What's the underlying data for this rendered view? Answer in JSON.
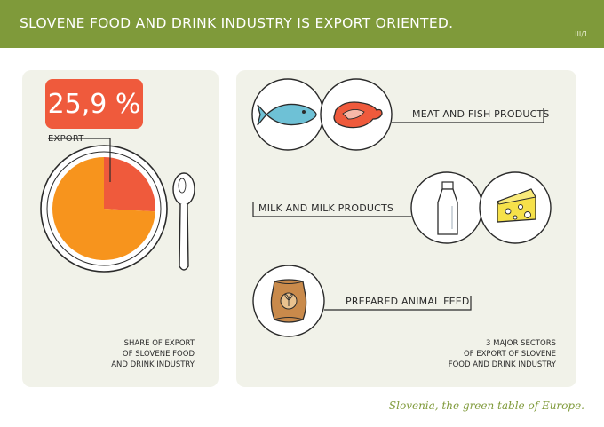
{
  "header": {
    "title": "SLOVENE FOOD AND DRINK INDUSTRY IS EXPORT ORIENTED.",
    "page_num": "III/1"
  },
  "left_panel": {
    "export_value": "25,9 %",
    "export_label": "EXPORT",
    "caption": [
      "SHARE OF EXPORT",
      "OF SLOVENE FOOD",
      "AND DRINK INDUSTRY"
    ]
  },
  "right_panel": {
    "sectors": [
      {
        "label": "MEAT AND FISH PRODUCTS",
        "icons": [
          "fish-icon",
          "meat-steak-icon"
        ]
      },
      {
        "label": "MILK AND MILK PRODUCTS",
        "icons": [
          "milk-bottle-icon",
          "cheese-icon"
        ]
      },
      {
        "label": "PREPARED ANIMAL FEED",
        "icons": [
          "feed-sack-icon"
        ]
      }
    ],
    "caption": [
      "3 MAJOR SECTORS",
      "OF EXPORT OF SLOVENE",
      "FOOD AND DRINK INDUSTRY"
    ]
  },
  "footer": {
    "slogan": "Slovenia, the green table of Europe."
  },
  "colors": {
    "accent_green": "#7f9a3a",
    "export_red": "#ef5a3c",
    "domestic_orange": "#f7941d",
    "panel_bg": "#f1f2e9"
  },
  "chart_data": {
    "type": "pie",
    "categories": [
      "export",
      "rest"
    ],
    "values": [
      25.9,
      74.1
    ],
    "unit": "%"
  }
}
